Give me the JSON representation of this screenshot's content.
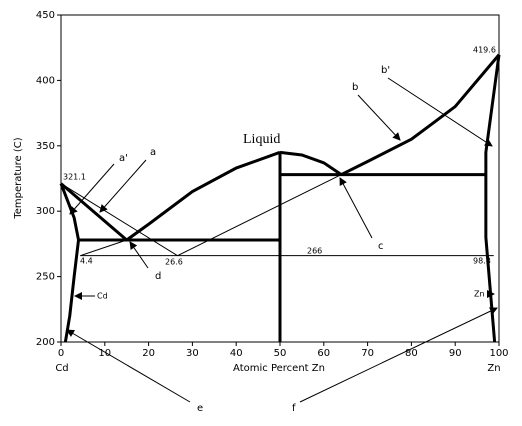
{
  "chart_data": {
    "type": "line",
    "x_label": "Atomic Percent Zn",
    "y_label": "Temperature (C)",
    "end_labels": [
      "Cd",
      "Zn"
    ],
    "xlim": [
      0,
      100
    ],
    "xticks": [
      0,
      10,
      20,
      30,
      40,
      50,
      60,
      70,
      80,
      90,
      100
    ],
    "ylim": [
      200,
      450
    ],
    "yticks": [
      200,
      250,
      300,
      350,
      400,
      450
    ],
    "color": "#000000",
    "series": [
      {
        "style": "thick",
        "x": [
          0,
          15
        ],
        "values": [
          321.1,
          278
        ]
      },
      {
        "style": "thick",
        "x": [
          15,
          20,
          30,
          40,
          50
        ],
        "values": [
          278,
          290,
          315,
          333,
          345
        ]
      },
      {
        "style": "thick",
        "x": [
          50,
          55,
          60,
          64
        ],
        "values": [
          345,
          343,
          337,
          328
        ]
      },
      {
        "style": "thick",
        "x": [
          64,
          70,
          80,
          90,
          100
        ],
        "values": [
          328,
          338,
          355,
          380,
          419.6
        ]
      },
      {
        "style": "thick",
        "x": [
          4,
          50
        ],
        "values": [
          278,
          278
        ]
      },
      {
        "style": "thick",
        "x": [
          50,
          97
        ],
        "values": [
          328,
          328
        ]
      },
      {
        "style": "thick",
        "x": [
          50,
          50
        ],
        "values": [
          345,
          200
        ]
      },
      {
        "style": "thick",
        "x": [
          0,
          3,
          4,
          3,
          2,
          1
        ],
        "values": [
          321.1,
          295,
          278,
          250,
          220,
          200
        ]
      },
      {
        "style": "thick",
        "x": [
          100,
          97,
          97,
          98,
          99
        ],
        "values": [
          419.6,
          345,
          280,
          240,
          200
        ]
      },
      {
        "style": "thin",
        "x": [
          4.4,
          98.8
        ],
        "values": [
          266,
          266
        ]
      },
      {
        "style": "thin",
        "x": [
          0,
          26.6
        ],
        "values": [
          321.1,
          266
        ]
      },
      {
        "style": "thin",
        "x": [
          26.6,
          64
        ],
        "values": [
          266,
          328
        ]
      },
      {
        "style": "thin",
        "x": [
          4.4,
          15
        ],
        "values": [
          266,
          278
        ]
      }
    ],
    "annotations": [
      "Liquid",
      "321.1",
      "419.6",
      "4.4",
      "26.6",
      "266",
      "98.8",
      "Cd",
      "Zn",
      "a'",
      "a",
      "b",
      "b'",
      "c",
      "d",
      "e",
      "f"
    ]
  }
}
